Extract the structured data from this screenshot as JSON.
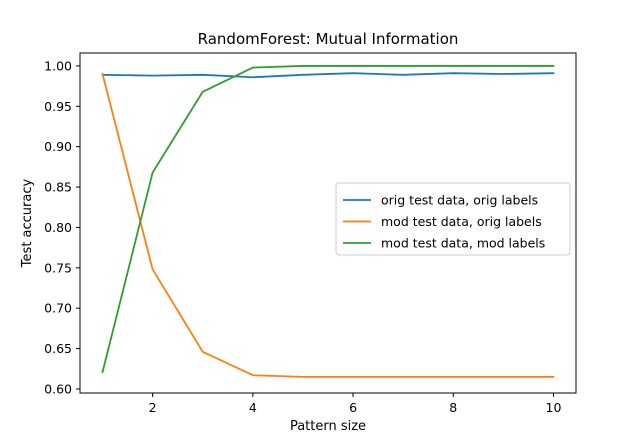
{
  "chart_data": {
    "type": "line",
    "title": "RandomForest: Mutual Information",
    "xlabel": "Pattern size",
    "ylabel": "Test accuracy",
    "x": [
      1,
      2,
      3,
      4,
      5,
      6,
      7,
      8,
      9,
      10
    ],
    "xlim": [
      0.55,
      10.45
    ],
    "ylim": [
      0.595,
      1.016
    ],
    "xticks": [
      2,
      4,
      6,
      8,
      10
    ],
    "yticks": [
      0.6,
      0.65,
      0.7,
      0.75,
      0.8,
      0.85,
      0.9,
      0.95,
      1.0
    ],
    "grid": false,
    "legend_position": "center-right",
    "series": [
      {
        "name": "orig test data, orig labels",
        "color": "#1f77b4",
        "values": [
          0.989,
          0.988,
          0.989,
          0.986,
          0.989,
          0.991,
          0.989,
          0.991,
          0.99,
          0.991
        ]
      },
      {
        "name": "mod test data, orig labels",
        "color": "#ff7f0e",
        "values": [
          0.99,
          0.748,
          0.646,
          0.617,
          0.615,
          0.615,
          0.615,
          0.615,
          0.615,
          0.615
        ]
      },
      {
        "name": "mod test data, mod labels",
        "color": "#2ca02c",
        "values": [
          0.621,
          0.868,
          0.968,
          0.998,
          1.0,
          1.0,
          1.0,
          1.0,
          1.0,
          1.0
        ]
      }
    ]
  }
}
